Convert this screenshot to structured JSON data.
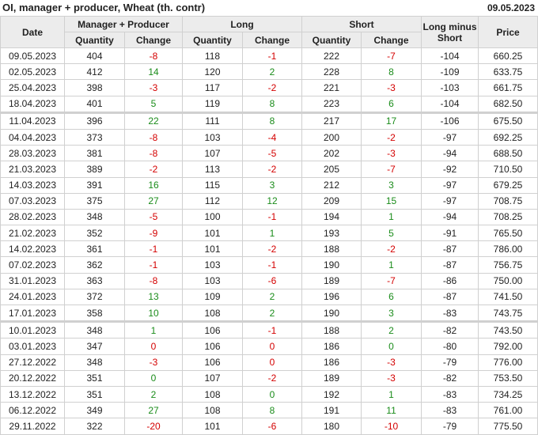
{
  "title": "OI, manager + producer, Wheat (th. contr)",
  "report_date": "09.05.2023",
  "colors": {
    "up": "#1a8c1a",
    "down": "#d40000",
    "header_bg": "#ececec"
  },
  "headers": {
    "date": "Date",
    "mp": "Manager + Producer",
    "long": "Long",
    "short": "Short",
    "lms": "Long minus Short",
    "price": "Price",
    "quantity": "Quantity",
    "change": "Change"
  },
  "rows": [
    {
      "date": "09.05.2023",
      "mp_q": "404",
      "mp_c": "-8",
      "mp_col": "r",
      "l_q": "118",
      "l_c": "-1",
      "l_col": "r",
      "s_q": "222",
      "s_c": "-7",
      "s_col": "r",
      "lms": "-104",
      "price": "660.25"
    },
    {
      "date": "02.05.2023",
      "mp_q": "412",
      "mp_c": "14",
      "mp_col": "g",
      "l_q": "120",
      "l_c": "2",
      "l_col": "g",
      "s_q": "228",
      "s_c": "8",
      "s_col": "g",
      "lms": "-109",
      "price": "633.75"
    },
    {
      "date": "25.04.2023",
      "mp_q": "398",
      "mp_c": "-3",
      "mp_col": "r",
      "l_q": "117",
      "l_c": "-2",
      "l_col": "r",
      "s_q": "221",
      "s_c": "-3",
      "s_col": "r",
      "lms": "-103",
      "price": "661.75"
    },
    {
      "date": "18.04.2023",
      "mp_q": "401",
      "mp_c": "5",
      "mp_col": "g",
      "l_q": "119",
      "l_c": "8",
      "l_col": "g",
      "s_q": "223",
      "s_c": "6",
      "s_col": "g",
      "lms": "-104",
      "price": "682.50"
    },
    {
      "date": "11.04.2023",
      "mp_q": "396",
      "mp_c": "22",
      "mp_col": "g",
      "l_q": "111",
      "l_c": "8",
      "l_col": "g",
      "s_q": "217",
      "s_c": "17",
      "s_col": "g",
      "lms": "-106",
      "price": "675.50",
      "sep": true
    },
    {
      "date": "04.04.2023",
      "mp_q": "373",
      "mp_c": "-8",
      "mp_col": "r",
      "l_q": "103",
      "l_c": "-4",
      "l_col": "r",
      "s_q": "200",
      "s_c": "-2",
      "s_col": "r",
      "lms": "-97",
      "price": "692.25"
    },
    {
      "date": "28.03.2023",
      "mp_q": "381",
      "mp_c": "-8",
      "mp_col": "r",
      "l_q": "107",
      "l_c": "-5",
      "l_col": "r",
      "s_q": "202",
      "s_c": "-3",
      "s_col": "r",
      "lms": "-94",
      "price": "688.50"
    },
    {
      "date": "21.03.2023",
      "mp_q": "389",
      "mp_c": "-2",
      "mp_col": "r",
      "l_q": "113",
      "l_c": "-2",
      "l_col": "r",
      "s_q": "205",
      "s_c": "-7",
      "s_col": "r",
      "lms": "-92",
      "price": "710.50"
    },
    {
      "date": "14.03.2023",
      "mp_q": "391",
      "mp_c": "16",
      "mp_col": "g",
      "l_q": "115",
      "l_c": "3",
      "l_col": "g",
      "s_q": "212",
      "s_c": "3",
      "s_col": "g",
      "lms": "-97",
      "price": "679.25"
    },
    {
      "date": "07.03.2023",
      "mp_q": "375",
      "mp_c": "27",
      "mp_col": "g",
      "l_q": "112",
      "l_c": "12",
      "l_col": "g",
      "s_q": "209",
      "s_c": "15",
      "s_col": "g",
      "lms": "-97",
      "price": "708.75"
    },
    {
      "date": "28.02.2023",
      "mp_q": "348",
      "mp_c": "-5",
      "mp_col": "r",
      "l_q": "100",
      "l_c": "-1",
      "l_col": "r",
      "s_q": "194",
      "s_c": "1",
      "s_col": "g",
      "lms": "-94",
      "price": "708.25"
    },
    {
      "date": "21.02.2023",
      "mp_q": "352",
      "mp_c": "-9",
      "mp_col": "r",
      "l_q": "101",
      "l_c": "1",
      "l_col": "g",
      "s_q": "193",
      "s_c": "5",
      "s_col": "g",
      "lms": "-91",
      "price": "765.50"
    },
    {
      "date": "14.02.2023",
      "mp_q": "361",
      "mp_c": "-1",
      "mp_col": "r",
      "l_q": "101",
      "l_c": "-2",
      "l_col": "r",
      "s_q": "188",
      "s_c": "-2",
      "s_col": "r",
      "lms": "-87",
      "price": "786.00"
    },
    {
      "date": "07.02.2023",
      "mp_q": "362",
      "mp_c": "-1",
      "mp_col": "r",
      "l_q": "103",
      "l_c": "-1",
      "l_col": "r",
      "s_q": "190",
      "s_c": "1",
      "s_col": "g",
      "lms": "-87",
      "price": "756.75"
    },
    {
      "date": "31.01.2023",
      "mp_q": "363",
      "mp_c": "-8",
      "mp_col": "r",
      "l_q": "103",
      "l_c": "-6",
      "l_col": "r",
      "s_q": "189",
      "s_c": "-7",
      "s_col": "r",
      "lms": "-86",
      "price": "750.00"
    },
    {
      "date": "24.01.2023",
      "mp_q": "372",
      "mp_c": "13",
      "mp_col": "g",
      "l_q": "109",
      "l_c": "2",
      "l_col": "g",
      "s_q": "196",
      "s_c": "6",
      "s_col": "g",
      "lms": "-87",
      "price": "741.50"
    },
    {
      "date": "17.01.2023",
      "mp_q": "358",
      "mp_c": "10",
      "mp_col": "g",
      "l_q": "108",
      "l_c": "2",
      "l_col": "g",
      "s_q": "190",
      "s_c": "3",
      "s_col": "g",
      "lms": "-83",
      "price": "743.75"
    },
    {
      "date": "10.01.2023",
      "mp_q": "348",
      "mp_c": "1",
      "mp_col": "g",
      "l_q": "106",
      "l_c": "-1",
      "l_col": "r",
      "s_q": "188",
      "s_c": "2",
      "s_col": "g",
      "lms": "-82",
      "price": "743.50",
      "sep": true
    },
    {
      "date": "03.01.2023",
      "mp_q": "347",
      "mp_c": "0",
      "mp_col": "r",
      "l_q": "106",
      "l_c": "0",
      "l_col": "r",
      "s_q": "186",
      "s_c": "0",
      "s_col": "g",
      "lms": "-80",
      "price": "792.00"
    },
    {
      "date": "27.12.2022",
      "mp_q": "348",
      "mp_c": "-3",
      "mp_col": "r",
      "l_q": "106",
      "l_c": "0",
      "l_col": "r",
      "s_q": "186",
      "s_c": "-3",
      "s_col": "r",
      "lms": "-79",
      "price": "776.00"
    },
    {
      "date": "20.12.2022",
      "mp_q": "351",
      "mp_c": "0",
      "mp_col": "g",
      "l_q": "107",
      "l_c": "-2",
      "l_col": "r",
      "s_q": "189",
      "s_c": "-3",
      "s_col": "r",
      "lms": "-82",
      "price": "753.50"
    },
    {
      "date": "13.12.2022",
      "mp_q": "351",
      "mp_c": "2",
      "mp_col": "g",
      "l_q": "108",
      "l_c": "0",
      "l_col": "g",
      "s_q": "192",
      "s_c": "1",
      "s_col": "g",
      "lms": "-83",
      "price": "734.25"
    },
    {
      "date": "06.12.2022",
      "mp_q": "349",
      "mp_c": "27",
      "mp_col": "g",
      "l_q": "108",
      "l_c": "8",
      "l_col": "g",
      "s_q": "191",
      "s_c": "11",
      "s_col": "g",
      "lms": "-83",
      "price": "761.00"
    },
    {
      "date": "29.11.2022",
      "mp_q": "322",
      "mp_c": "-20",
      "mp_col": "r",
      "l_q": "101",
      "l_c": "-6",
      "l_col": "r",
      "s_q": "180",
      "s_c": "-10",
      "s_col": "r",
      "lms": "-79",
      "price": "775.50"
    }
  ]
}
